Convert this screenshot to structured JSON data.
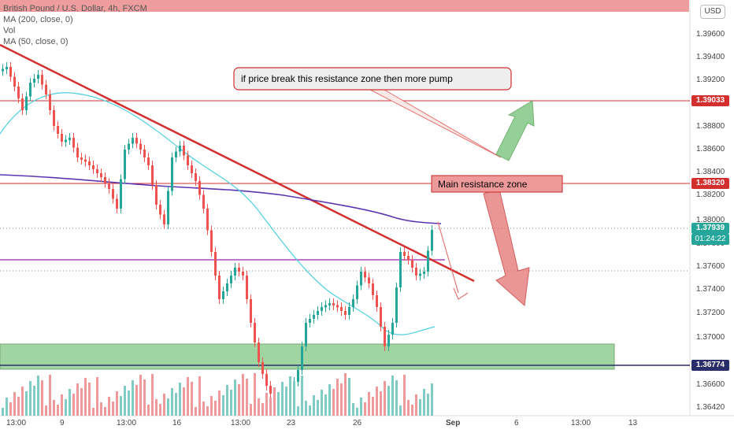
{
  "legend": {
    "symbol": "British Pound / U.S. Dollar, 4h, FXCM",
    "ma200": "MA (200, close, 0)",
    "vol": "Vol",
    "ma50": "MA (50, close, 0)"
  },
  "currency_button": "USD",
  "price_axis": {
    "ticks": [
      "1.39600",
      "1.39400",
      "1.39200",
      "1.38800",
      "1.38600",
      "1.38400",
      "1.38200",
      "1.38000",
      "1.37800",
      "1.37600",
      "1.37400",
      "1.37200",
      "1.37000",
      "1.36600",
      "1.36420"
    ],
    "labels": {
      "resistance_top": "1.39033",
      "resistance_main": "1.38320",
      "current_price": "1.37939",
      "countdown": "01:24:22",
      "support": "1.36774"
    },
    "colors": {
      "red": "#d32f2f",
      "green": "#26a69a",
      "navy": "#2a2e68"
    }
  },
  "time_axis": {
    "ticks": [
      "13:00",
      "9",
      "13:00",
      "16",
      "13:00",
      "23",
      "26",
      "Sep",
      "6",
      "13:00",
      "13"
    ]
  },
  "annotations": {
    "callout": "if price break this resistance zone then more pump",
    "zone_label": "Main resistance zone"
  }
}
